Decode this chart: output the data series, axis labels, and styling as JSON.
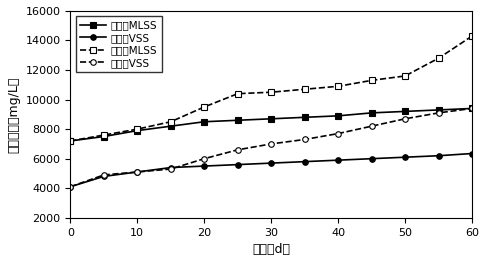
{
  "series": [
    {
      "label": "实验组MLSS",
      "x": [
        0,
        5,
        10,
        15,
        20,
        25,
        30,
        35,
        40,
        45,
        50,
        55,
        60
      ],
      "y": [
        7200,
        7500,
        7900,
        8200,
        8500,
        8600,
        8700,
        8800,
        8900,
        9100,
        9200,
        9300,
        9400
      ],
      "color": "#000000",
      "linestyle": "-",
      "marker": "s",
      "markersize": 4,
      "mfc": "black",
      "mec": "black"
    },
    {
      "label": "实验组VSS",
      "x": [
        0,
        5,
        10,
        15,
        20,
        25,
        30,
        35,
        40,
        45,
        50,
        55,
        60
      ],
      "y": [
        4100,
        4800,
        5100,
        5400,
        5500,
        5600,
        5700,
        5800,
        5900,
        6000,
        6100,
        6200,
        6350
      ],
      "color": "#000000",
      "linestyle": "-",
      "marker": "o",
      "markersize": 4,
      "mfc": "black",
      "mec": "black"
    },
    {
      "label": "对照组MLSS",
      "x": [
        0,
        5,
        10,
        15,
        20,
        25,
        30,
        35,
        40,
        45,
        50,
        55,
        60
      ],
      "y": [
        7200,
        7600,
        8000,
        8500,
        9500,
        10400,
        10500,
        10700,
        10900,
        11300,
        11600,
        12800,
        14300
      ],
      "color": "#000000",
      "linestyle": "--",
      "marker": "s",
      "markersize": 4,
      "mfc": "white",
      "mec": "black"
    },
    {
      "label": "对照组VSS",
      "x": [
        0,
        5,
        10,
        15,
        20,
        25,
        30,
        35,
        40,
        45,
        50,
        55,
        60
      ],
      "y": [
        4100,
        4900,
        5100,
        5300,
        6000,
        6600,
        7000,
        7300,
        7700,
        8200,
        8700,
        9100,
        9400
      ],
      "color": "#000000",
      "linestyle": "--",
      "marker": "o",
      "markersize": 4,
      "mfc": "white",
      "mec": "black"
    }
  ],
  "xlabel": "时间（d）",
  "ylabel": "污泥浓度（mg/L）",
  "xlim": [
    0,
    60
  ],
  "ylim": [
    2000,
    16000
  ],
  "yticks": [
    2000,
    4000,
    6000,
    8000,
    10000,
    12000,
    14000,
    16000
  ],
  "xticks": [
    0,
    10,
    20,
    30,
    40,
    50,
    60
  ],
  "background_color": "#ffffff",
  "legend_loc": "upper left",
  "legend_fontsize": 7.5,
  "axis_fontsize": 9,
  "tick_fontsize": 8
}
